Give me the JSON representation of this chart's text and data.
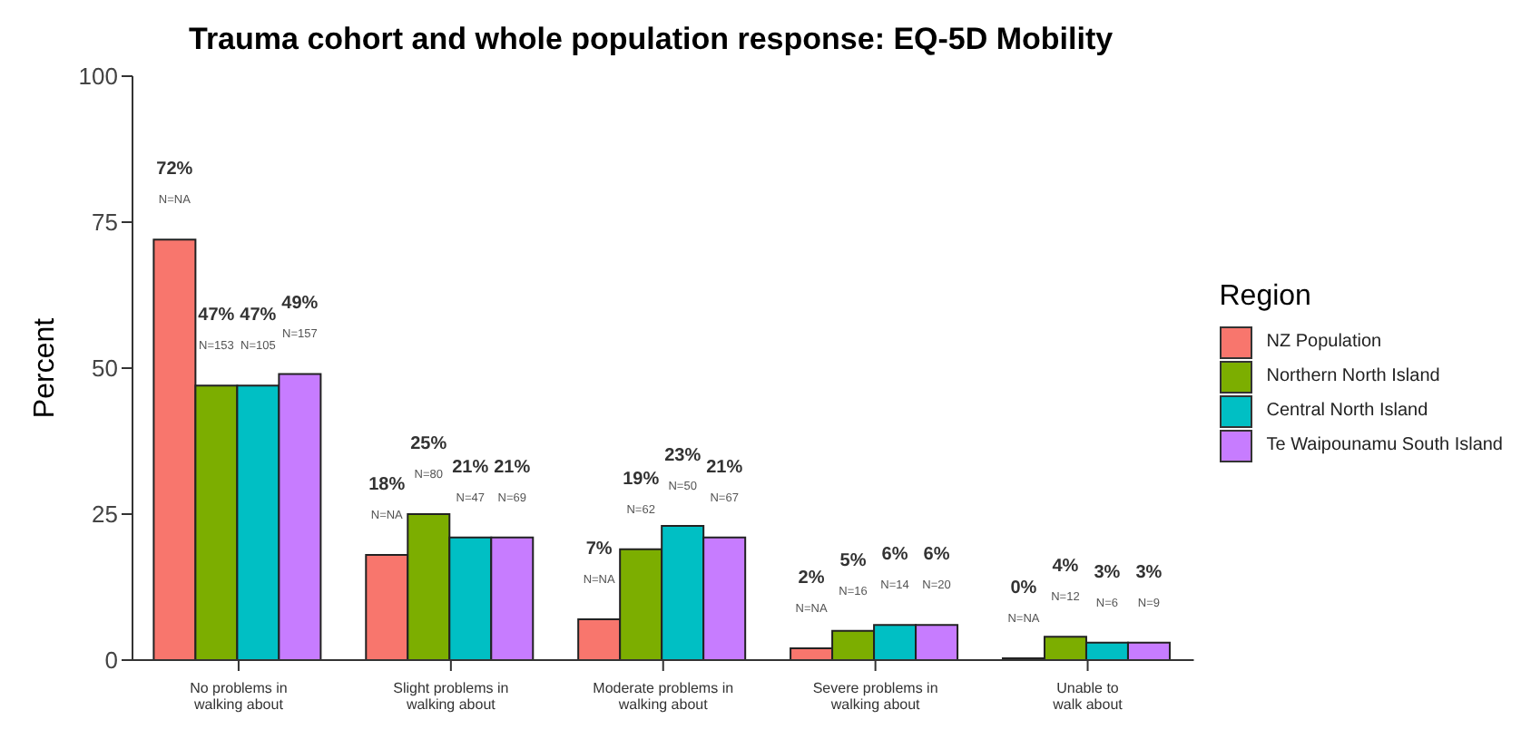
{
  "chart_data": {
    "type": "bar",
    "title": "Trauma cohort and whole population response: EQ-5D Mobility",
    "ylabel": "Percent",
    "legend_title": "Region",
    "legend": "right",
    "categories": [
      "No problems in\nwalking about",
      "Slight problems in\nwalking about",
      "Moderate problems in\nwalking about",
      "Severe problems in\nwalking about",
      "Unable to\nwalk about"
    ],
    "series": [
      {
        "name": "NZ Population",
        "color": "#f8766d",
        "values": [
          72,
          18,
          7,
          2,
          0
        ],
        "value_labels": [
          "72%\nN=NA",
          "18%\nN=NA",
          "7%\nN=NA",
          "2%\nN=NA",
          "0%\nN=NA"
        ]
      },
      {
        "name": "Northern North Island",
        "color": "#7cae00",
        "values": [
          47,
          25,
          19,
          5,
          4
        ],
        "value_labels": [
          "47%\nN=153",
          "25%\nN=80",
          "19%\nN=62",
          "5%\nN=16",
          "4%\nN=12"
        ]
      },
      {
        "name": "Central North Island",
        "color": "#00bfc4",
        "values": [
          47,
          21,
          23,
          6,
          3
        ],
        "value_labels": [
          "47%\nN=105",
          "21%\nN=47",
          "23%\nN=50",
          "6%\nN=14",
          "3%\nN=6"
        ]
      },
      {
        "name": "Te Waipounamu South Island",
        "color": "#c77cff",
        "values": [
          49,
          21,
          21,
          6,
          3
        ],
        "value_labels": [
          "49%\nN=157",
          "21%\nN=69",
          "21%\nN=67",
          "6%\nN=20",
          "3%\nN=9"
        ]
      }
    ],
    "ylim": [
      0,
      100
    ],
    "yticks": [
      0,
      25,
      50,
      75,
      100
    ],
    "grid": false
  }
}
